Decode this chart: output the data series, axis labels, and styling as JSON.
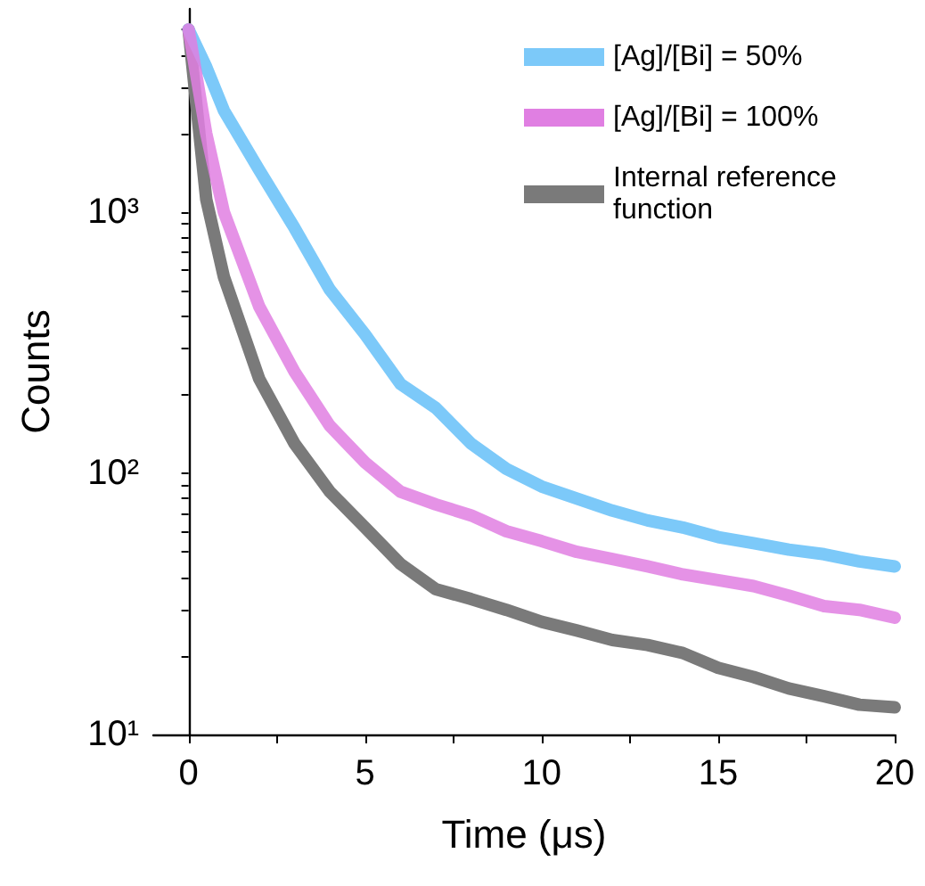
{
  "chart_data": {
    "type": "line",
    "xlabel": "Time (μs)",
    "ylabel": "Counts",
    "log": "y",
    "grid": false,
    "legend": "top right",
    "marker": "none",
    "line_style": "solid",
    "xlim": [
      -1,
      20
    ],
    "xticks": [
      0,
      {
        "value": 2.5,
        "label": null
      },
      5,
      {
        "value": 7.5,
        "label": null
      },
      10,
      {
        "value": 12.5,
        "label": null
      },
      15,
      {
        "value": 17.5,
        "label": null
      },
      20
    ],
    "ylim": [
      10,
      6000
    ],
    "yticks": [
      {
        "value": 10,
        "label": "10¹"
      },
      {
        "value": 20,
        "label": null
      },
      {
        "value": 30,
        "label": null
      },
      {
        "value": 40,
        "label": null
      },
      {
        "value": 50,
        "label": null
      },
      {
        "value": 60,
        "label": null
      },
      {
        "value": 70,
        "label": null
      },
      {
        "value": 80,
        "label": null
      },
      {
        "value": 90,
        "label": null
      },
      {
        "value": 100,
        "label": "10²"
      },
      {
        "value": 200,
        "label": null
      },
      {
        "value": 300,
        "label": null
      },
      {
        "value": 400,
        "label": null
      },
      {
        "value": 500,
        "label": null
      },
      {
        "value": 600,
        "label": null
      },
      {
        "value": 700,
        "label": null
      },
      {
        "value": 800,
        "label": null
      },
      {
        "value": 900,
        "label": null
      },
      {
        "value": 1000,
        "label": "10³"
      },
      {
        "value": 2000,
        "label": null
      },
      {
        "value": 3000,
        "label": null
      },
      {
        "value": 4000,
        "label": null
      },
      {
        "value": 5000,
        "label": null
      }
    ],
    "series": [
      {
        "name": "[Ag]/[Bi] = 50%",
        "color": "#7cc9f9",
        "x": [
          0,
          0.5,
          1,
          2,
          3,
          4,
          5,
          6,
          7,
          8,
          9,
          10,
          11,
          12,
          13,
          14,
          15,
          16,
          17,
          18,
          19,
          20
        ],
        "values": [
          5000,
          3600,
          2450,
          1450,
          870,
          505,
          340,
          220,
          178,
          130,
          104,
          89,
          80,
          72,
          66,
          62,
          57,
          54,
          51,
          49,
          46,
          44
        ]
      },
      {
        "name": "[Ag]/[Bi] = 100%",
        "color": "#e07fe2",
        "x": [
          0,
          0.5,
          1,
          2,
          3,
          4,
          5,
          6,
          7,
          8,
          9,
          10,
          11,
          12,
          13,
          14,
          15,
          16,
          17,
          18,
          19,
          20
        ],
        "values": [
          5000,
          2000,
          1000,
          435,
          245,
          152,
          110,
          85,
          76,
          69,
          60,
          55,
          50,
          47,
          44,
          41,
          39,
          37,
          34,
          31,
          30,
          28
        ]
      },
      {
        "name": "Internal reference function",
        "color": "#7a7a7a",
        "x": [
          0,
          0.5,
          1,
          2,
          3,
          4,
          5,
          6,
          7,
          8,
          9,
          10,
          11,
          12,
          13,
          14,
          15,
          16,
          17,
          18,
          19,
          20
        ],
        "values": [
          5000,
          1120,
          565,
          230,
          130,
          85,
          62,
          45,
          36,
          33,
          30,
          27,
          25,
          23,
          22,
          20.5,
          18,
          16.6,
          15,
          14,
          13,
          12.7
        ]
      }
    ]
  }
}
